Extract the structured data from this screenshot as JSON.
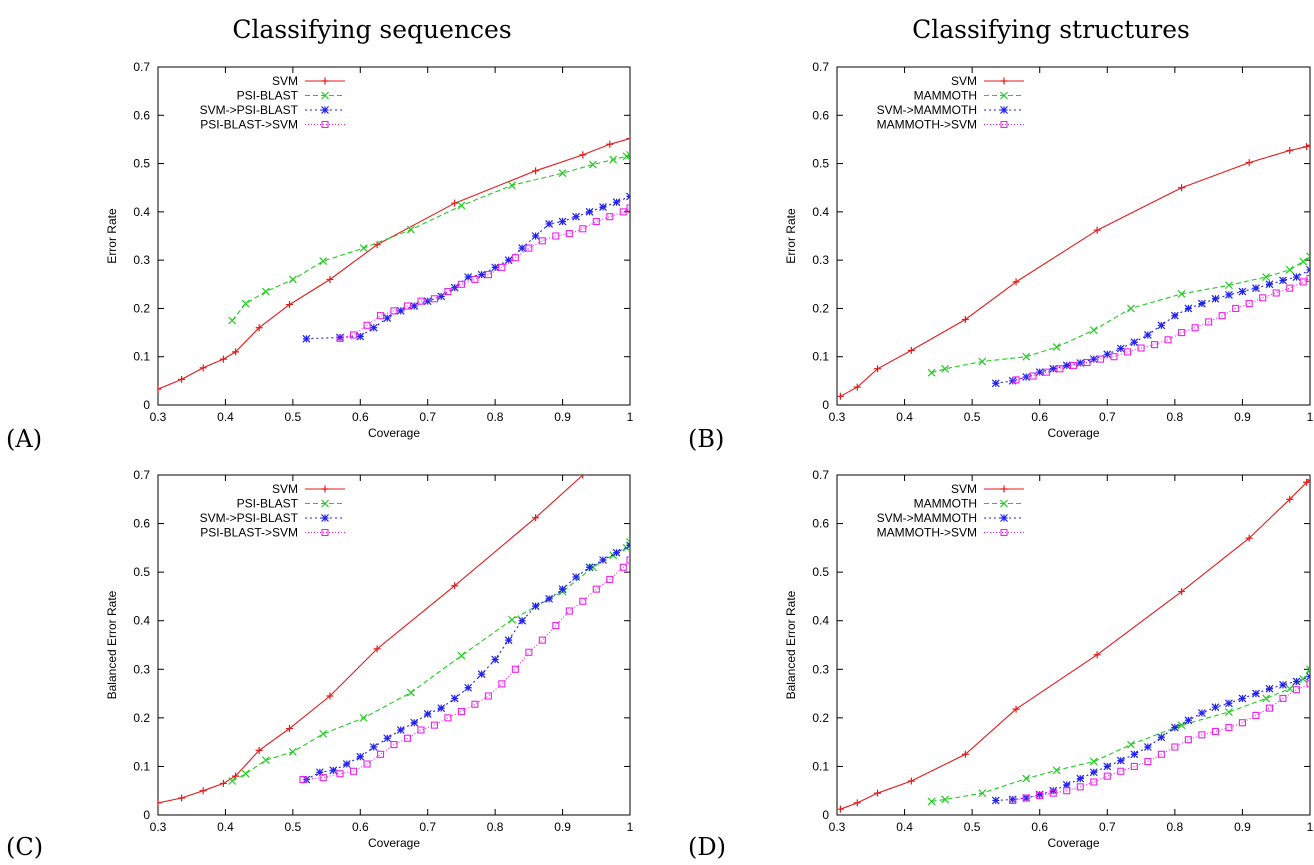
{
  "chart_data": [
    {
      "type": "line",
      "panel_label": "(A)",
      "title": "Classifying sequences",
      "xlabel": "Coverage",
      "ylabel": "Error Rate",
      "xlim": [
        0.3,
        1.0
      ],
      "ylim": [
        0,
        0.7
      ],
      "xticks": [
        "0.3",
        "0.4",
        "0.5",
        "0.6",
        "0.7",
        "0.8",
        "0.9",
        "1"
      ],
      "yticks": [
        "0",
        "0.1",
        "0.2",
        "0.3",
        "0.4",
        "0.5",
        "0.6",
        "0.7"
      ],
      "legend_position": "top-left",
      "series": [
        {
          "name": "SVM",
          "color": "#e41a1c",
          "marker": "plus",
          "dash": "",
          "x": [
            0.3,
            0.335,
            0.367,
            0.397,
            0.415,
            0.45,
            0.495,
            0.555,
            0.625,
            0.74,
            0.86,
            0.93,
            0.97,
            1.0
          ],
          "y": [
            0.033,
            0.053,
            0.077,
            0.095,
            0.11,
            0.16,
            0.208,
            0.26,
            0.332,
            0.418,
            0.485,
            0.518,
            0.54,
            0.552
          ]
        },
        {
          "name": "PSI-BLAST",
          "color": "#22cc22",
          "marker": "x",
          "dash": "5,3",
          "x": [
            0.41,
            0.43,
            0.46,
            0.5,
            0.545,
            0.605,
            0.675,
            0.75,
            0.825,
            0.9,
            0.945,
            0.975,
            0.995,
            1.0
          ],
          "y": [
            0.175,
            0.21,
            0.235,
            0.26,
            0.298,
            0.325,
            0.363,
            0.413,
            0.455,
            0.48,
            0.498,
            0.508,
            0.515,
            0.518
          ]
        },
        {
          "name": "SVM->PSI-BLAST",
          "color": "#2222ee",
          "marker": "star",
          "dash": "2,3",
          "x": [
            0.52,
            0.57,
            0.6,
            0.62,
            0.64,
            0.66,
            0.68,
            0.7,
            0.72,
            0.74,
            0.76,
            0.78,
            0.8,
            0.82,
            0.84,
            0.86,
            0.88,
            0.9,
            0.92,
            0.94,
            0.96,
            0.98,
            1.0
          ],
          "y": [
            0.137,
            0.14,
            0.142,
            0.16,
            0.18,
            0.195,
            0.205,
            0.215,
            0.225,
            0.243,
            0.265,
            0.27,
            0.285,
            0.3,
            0.325,
            0.35,
            0.375,
            0.38,
            0.39,
            0.4,
            0.41,
            0.42,
            0.432
          ]
        },
        {
          "name": "PSI-BLAST->SVM",
          "color": "#ee22ee",
          "marker": "square",
          "dash": "1,2",
          "x": [
            0.57,
            0.59,
            0.61,
            0.63,
            0.65,
            0.67,
            0.69,
            0.71,
            0.73,
            0.75,
            0.77,
            0.79,
            0.81,
            0.83,
            0.85,
            0.87,
            0.89,
            0.91,
            0.93,
            0.95,
            0.97,
            0.99,
            1.0
          ],
          "y": [
            0.138,
            0.145,
            0.165,
            0.185,
            0.195,
            0.205,
            0.215,
            0.22,
            0.235,
            0.25,
            0.26,
            0.27,
            0.285,
            0.305,
            0.325,
            0.34,
            0.35,
            0.355,
            0.365,
            0.38,
            0.39,
            0.4,
            0.408
          ]
        }
      ]
    },
    {
      "type": "line",
      "panel_label": "(B)",
      "title": "Classifying structures",
      "xlabel": "Coverage",
      "ylabel": "Error Rate",
      "xlim": [
        0.3,
        1.0
      ],
      "ylim": [
        0,
        0.7
      ],
      "xticks": [
        "0.3",
        "0.4",
        "0.5",
        "0.6",
        "0.7",
        "0.8",
        "0.9",
        "1"
      ],
      "yticks": [
        "0",
        "0.1",
        "0.2",
        "0.3",
        "0.4",
        "0.5",
        "0.6",
        "0.7"
      ],
      "legend_position": "top-left",
      "series": [
        {
          "name": "SVM",
          "color": "#e41a1c",
          "marker": "plus",
          "dash": "",
          "x": [
            0.305,
            0.33,
            0.36,
            0.41,
            0.49,
            0.565,
            0.685,
            0.81,
            0.91,
            0.97,
            0.995,
            1.0
          ],
          "y": [
            0.018,
            0.037,
            0.075,
            0.113,
            0.177,
            0.255,
            0.362,
            0.45,
            0.502,
            0.527,
            0.535,
            0.538
          ]
        },
        {
          "name": "MAMMOTH",
          "color": "#22cc22",
          "marker": "x",
          "dash": "5,3",
          "x": [
            0.44,
            0.46,
            0.515,
            0.58,
            0.625,
            0.68,
            0.735,
            0.81,
            0.88,
            0.935,
            0.97,
            0.99,
            1.0
          ],
          "y": [
            0.067,
            0.075,
            0.09,
            0.1,
            0.12,
            0.155,
            0.2,
            0.23,
            0.248,
            0.265,
            0.28,
            0.297,
            0.308
          ]
        },
        {
          "name": "SVM->MAMMOTH",
          "color": "#2222ee",
          "marker": "star",
          "dash": "2,3",
          "x": [
            0.535,
            0.56,
            0.58,
            0.6,
            0.62,
            0.64,
            0.66,
            0.68,
            0.7,
            0.72,
            0.74,
            0.76,
            0.78,
            0.8,
            0.82,
            0.84,
            0.86,
            0.88,
            0.9,
            0.92,
            0.94,
            0.96,
            0.98,
            1.0
          ],
          "y": [
            0.045,
            0.05,
            0.058,
            0.068,
            0.075,
            0.082,
            0.087,
            0.095,
            0.105,
            0.117,
            0.13,
            0.145,
            0.165,
            0.185,
            0.2,
            0.21,
            0.22,
            0.228,
            0.235,
            0.242,
            0.25,
            0.258,
            0.265,
            0.28
          ]
        },
        {
          "name": "MAMMOTH->SVM",
          "color": "#ee22ee",
          "marker": "square",
          "dash": "1,2",
          "x": [
            0.565,
            0.59,
            0.61,
            0.63,
            0.65,
            0.67,
            0.69,
            0.71,
            0.73,
            0.75,
            0.77,
            0.79,
            0.81,
            0.83,
            0.85,
            0.87,
            0.89,
            0.91,
            0.93,
            0.95,
            0.97,
            0.99,
            1.0
          ],
          "y": [
            0.052,
            0.06,
            0.068,
            0.075,
            0.082,
            0.088,
            0.095,
            0.1,
            0.11,
            0.118,
            0.125,
            0.135,
            0.15,
            0.16,
            0.172,
            0.185,
            0.2,
            0.21,
            0.222,
            0.232,
            0.242,
            0.255,
            0.262
          ]
        }
      ]
    },
    {
      "type": "line",
      "panel_label": "(C)",
      "title": "",
      "xlabel": "Coverage",
      "ylabel": "Balanced Error Rate",
      "xlim": [
        0.3,
        1.0
      ],
      "ylim": [
        0,
        0.7
      ],
      "xticks": [
        "0.3",
        "0.4",
        "0.5",
        "0.6",
        "0.7",
        "0.8",
        "0.9",
        "1"
      ],
      "yticks": [
        "0",
        "0.1",
        "0.2",
        "0.3",
        "0.4",
        "0.5",
        "0.6",
        "0.7"
      ],
      "legend_position": "top-left",
      "series": [
        {
          "name": "SVM",
          "color": "#e41a1c",
          "marker": "plus",
          "dash": "",
          "x": [
            0.3,
            0.335,
            0.367,
            0.397,
            0.415,
            0.45,
            0.495,
            0.555,
            0.625,
            0.74,
            0.86,
            0.93,
            0.94
          ],
          "y": [
            0.025,
            0.035,
            0.05,
            0.065,
            0.08,
            0.133,
            0.178,
            0.245,
            0.342,
            0.472,
            0.612,
            0.7,
            0.71
          ]
        },
        {
          "name": "PSI-BLAST",
          "color": "#22cc22",
          "marker": "x",
          "dash": "5,3",
          "x": [
            0.41,
            0.43,
            0.46,
            0.5,
            0.545,
            0.605,
            0.675,
            0.75,
            0.825,
            0.9,
            0.945,
            0.975,
            0.995,
            1.0
          ],
          "y": [
            0.07,
            0.085,
            0.113,
            0.13,
            0.167,
            0.2,
            0.252,
            0.328,
            0.402,
            0.46,
            0.51,
            0.535,
            0.55,
            0.562
          ]
        },
        {
          "name": "SVM->PSI-BLAST",
          "color": "#2222ee",
          "marker": "star",
          "dash": "2,3",
          "x": [
            0.52,
            0.54,
            0.56,
            0.58,
            0.6,
            0.62,
            0.64,
            0.66,
            0.68,
            0.7,
            0.72,
            0.74,
            0.76,
            0.78,
            0.8,
            0.82,
            0.84,
            0.86,
            0.88,
            0.9,
            0.92,
            0.94,
            0.96,
            0.98,
            1.0
          ],
          "y": [
            0.073,
            0.088,
            0.092,
            0.105,
            0.12,
            0.14,
            0.158,
            0.175,
            0.19,
            0.208,
            0.22,
            0.24,
            0.262,
            0.29,
            0.32,
            0.36,
            0.4,
            0.43,
            0.445,
            0.465,
            0.49,
            0.51,
            0.525,
            0.54,
            0.555
          ]
        },
        {
          "name": "PSI-BLAST->SVM",
          "color": "#ee22ee",
          "marker": "square",
          "dash": "1,2",
          "x": [
            0.515,
            0.545,
            0.57,
            0.59,
            0.61,
            0.63,
            0.65,
            0.67,
            0.69,
            0.71,
            0.73,
            0.75,
            0.77,
            0.79,
            0.81,
            0.83,
            0.85,
            0.87,
            0.89,
            0.91,
            0.93,
            0.95,
            0.97,
            0.99,
            1.0
          ],
          "y": [
            0.073,
            0.077,
            0.085,
            0.09,
            0.105,
            0.125,
            0.145,
            0.158,
            0.175,
            0.185,
            0.2,
            0.213,
            0.228,
            0.245,
            0.27,
            0.3,
            0.335,
            0.36,
            0.39,
            0.42,
            0.44,
            0.465,
            0.485,
            0.51,
            0.525
          ]
        }
      ]
    },
    {
      "type": "line",
      "panel_label": "(D)",
      "title": "",
      "xlabel": "Coverage",
      "ylabel": "Balanced Error Rate",
      "xlim": [
        0.3,
        1.0
      ],
      "ylim": [
        0,
        0.7
      ],
      "xticks": [
        "0.3",
        "0.4",
        "0.5",
        "0.6",
        "0.7",
        "0.8",
        "0.9",
        "1"
      ],
      "yticks": [
        "0",
        "0.1",
        "0.2",
        "0.3",
        "0.4",
        "0.5",
        "0.6",
        "0.7"
      ],
      "legend_position": "top-left",
      "series": [
        {
          "name": "SVM",
          "color": "#e41a1c",
          "marker": "plus",
          "dash": "",
          "x": [
            0.305,
            0.33,
            0.36,
            0.41,
            0.49,
            0.565,
            0.685,
            0.81,
            0.91,
            0.97,
            0.995,
            1.0
          ],
          "y": [
            0.012,
            0.025,
            0.045,
            0.07,
            0.125,
            0.218,
            0.33,
            0.46,
            0.57,
            0.65,
            0.685,
            0.69
          ]
        },
        {
          "name": "MAMMOTH",
          "color": "#22cc22",
          "marker": "x",
          "dash": "5,3",
          "x": [
            0.44,
            0.46,
            0.515,
            0.58,
            0.625,
            0.68,
            0.735,
            0.81,
            0.88,
            0.935,
            0.97,
            0.99,
            1.0
          ],
          "y": [
            0.028,
            0.032,
            0.045,
            0.075,
            0.092,
            0.11,
            0.145,
            0.185,
            0.212,
            0.24,
            0.26,
            0.28,
            0.3
          ]
        },
        {
          "name": "SVM->MAMMOTH",
          "color": "#2222ee",
          "marker": "star",
          "dash": "2,3",
          "x": [
            0.535,
            0.56,
            0.58,
            0.6,
            0.62,
            0.64,
            0.66,
            0.68,
            0.7,
            0.72,
            0.74,
            0.76,
            0.78,
            0.8,
            0.82,
            0.84,
            0.86,
            0.88,
            0.9,
            0.92,
            0.94,
            0.96,
            0.98,
            1.0
          ],
          "y": [
            0.03,
            0.032,
            0.035,
            0.042,
            0.05,
            0.062,
            0.075,
            0.088,
            0.1,
            0.112,
            0.125,
            0.14,
            0.16,
            0.18,
            0.195,
            0.21,
            0.222,
            0.23,
            0.24,
            0.25,
            0.26,
            0.268,
            0.275,
            0.285
          ]
        },
        {
          "name": "MAMMOTH->SVM",
          "color": "#ee22ee",
          "marker": "square",
          "dash": "1,2",
          "x": [
            0.56,
            0.58,
            0.6,
            0.62,
            0.64,
            0.66,
            0.68,
            0.7,
            0.72,
            0.74,
            0.76,
            0.78,
            0.8,
            0.82,
            0.84,
            0.86,
            0.88,
            0.9,
            0.92,
            0.94,
            0.96,
            0.98,
            1.0
          ],
          "y": [
            0.03,
            0.035,
            0.04,
            0.045,
            0.05,
            0.058,
            0.068,
            0.08,
            0.09,
            0.1,
            0.11,
            0.125,
            0.14,
            0.155,
            0.165,
            0.172,
            0.18,
            0.19,
            0.205,
            0.22,
            0.24,
            0.258,
            0.27
          ]
        }
      ]
    }
  ]
}
